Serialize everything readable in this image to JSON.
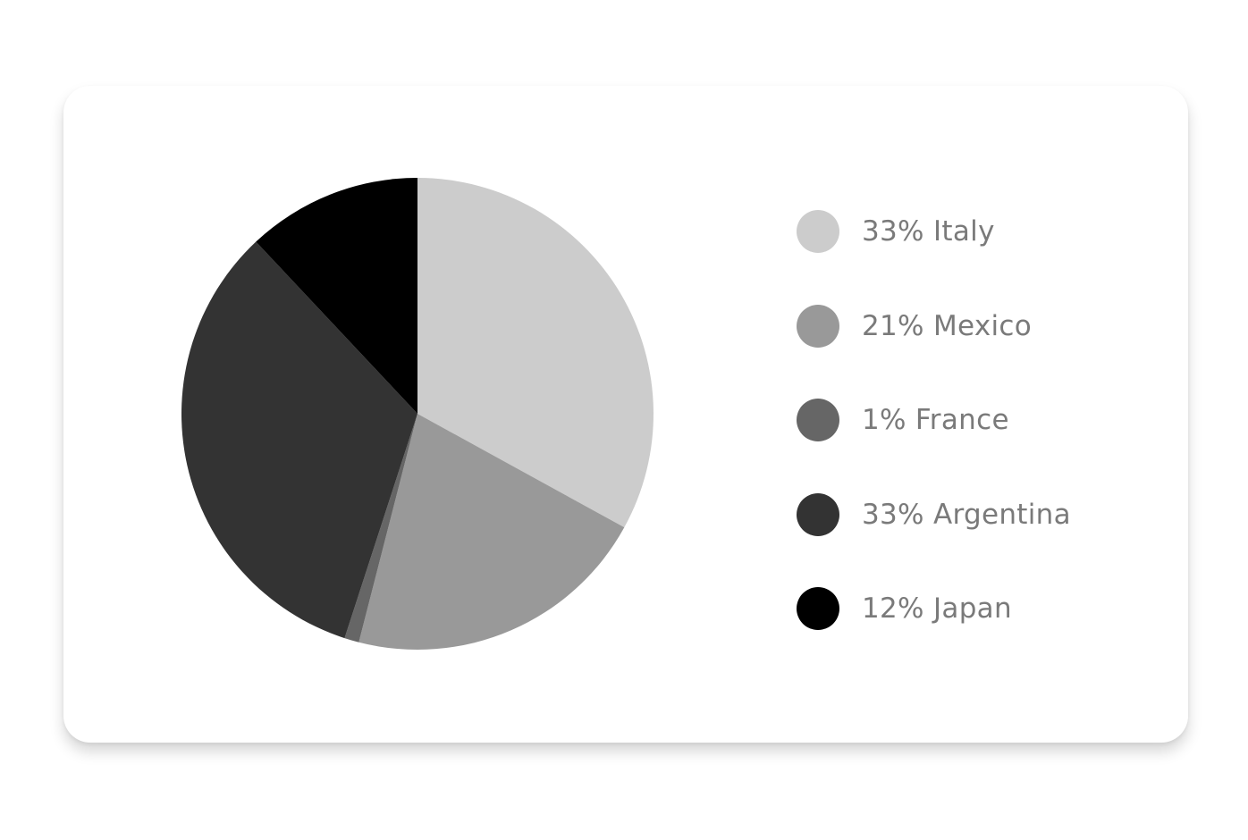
{
  "chart_data": {
    "type": "pie",
    "title": "",
    "slices": [
      {
        "label": "33% Italy",
        "name": "Italy",
        "value": 33,
        "color": "#cccccc"
      },
      {
        "label": "21% Mexico",
        "name": "Mexico",
        "value": 21,
        "color": "#999999"
      },
      {
        "label": "1% France",
        "name": "France",
        "value": 1,
        "color": "#666666"
      },
      {
        "label": "33% Argentina",
        "name": "Argentina",
        "value": 33,
        "color": "#333333"
      },
      {
        "label": "12% Japan",
        "name": "Japan",
        "value": 12,
        "color": "#000000"
      }
    ],
    "legend_position": "right"
  }
}
